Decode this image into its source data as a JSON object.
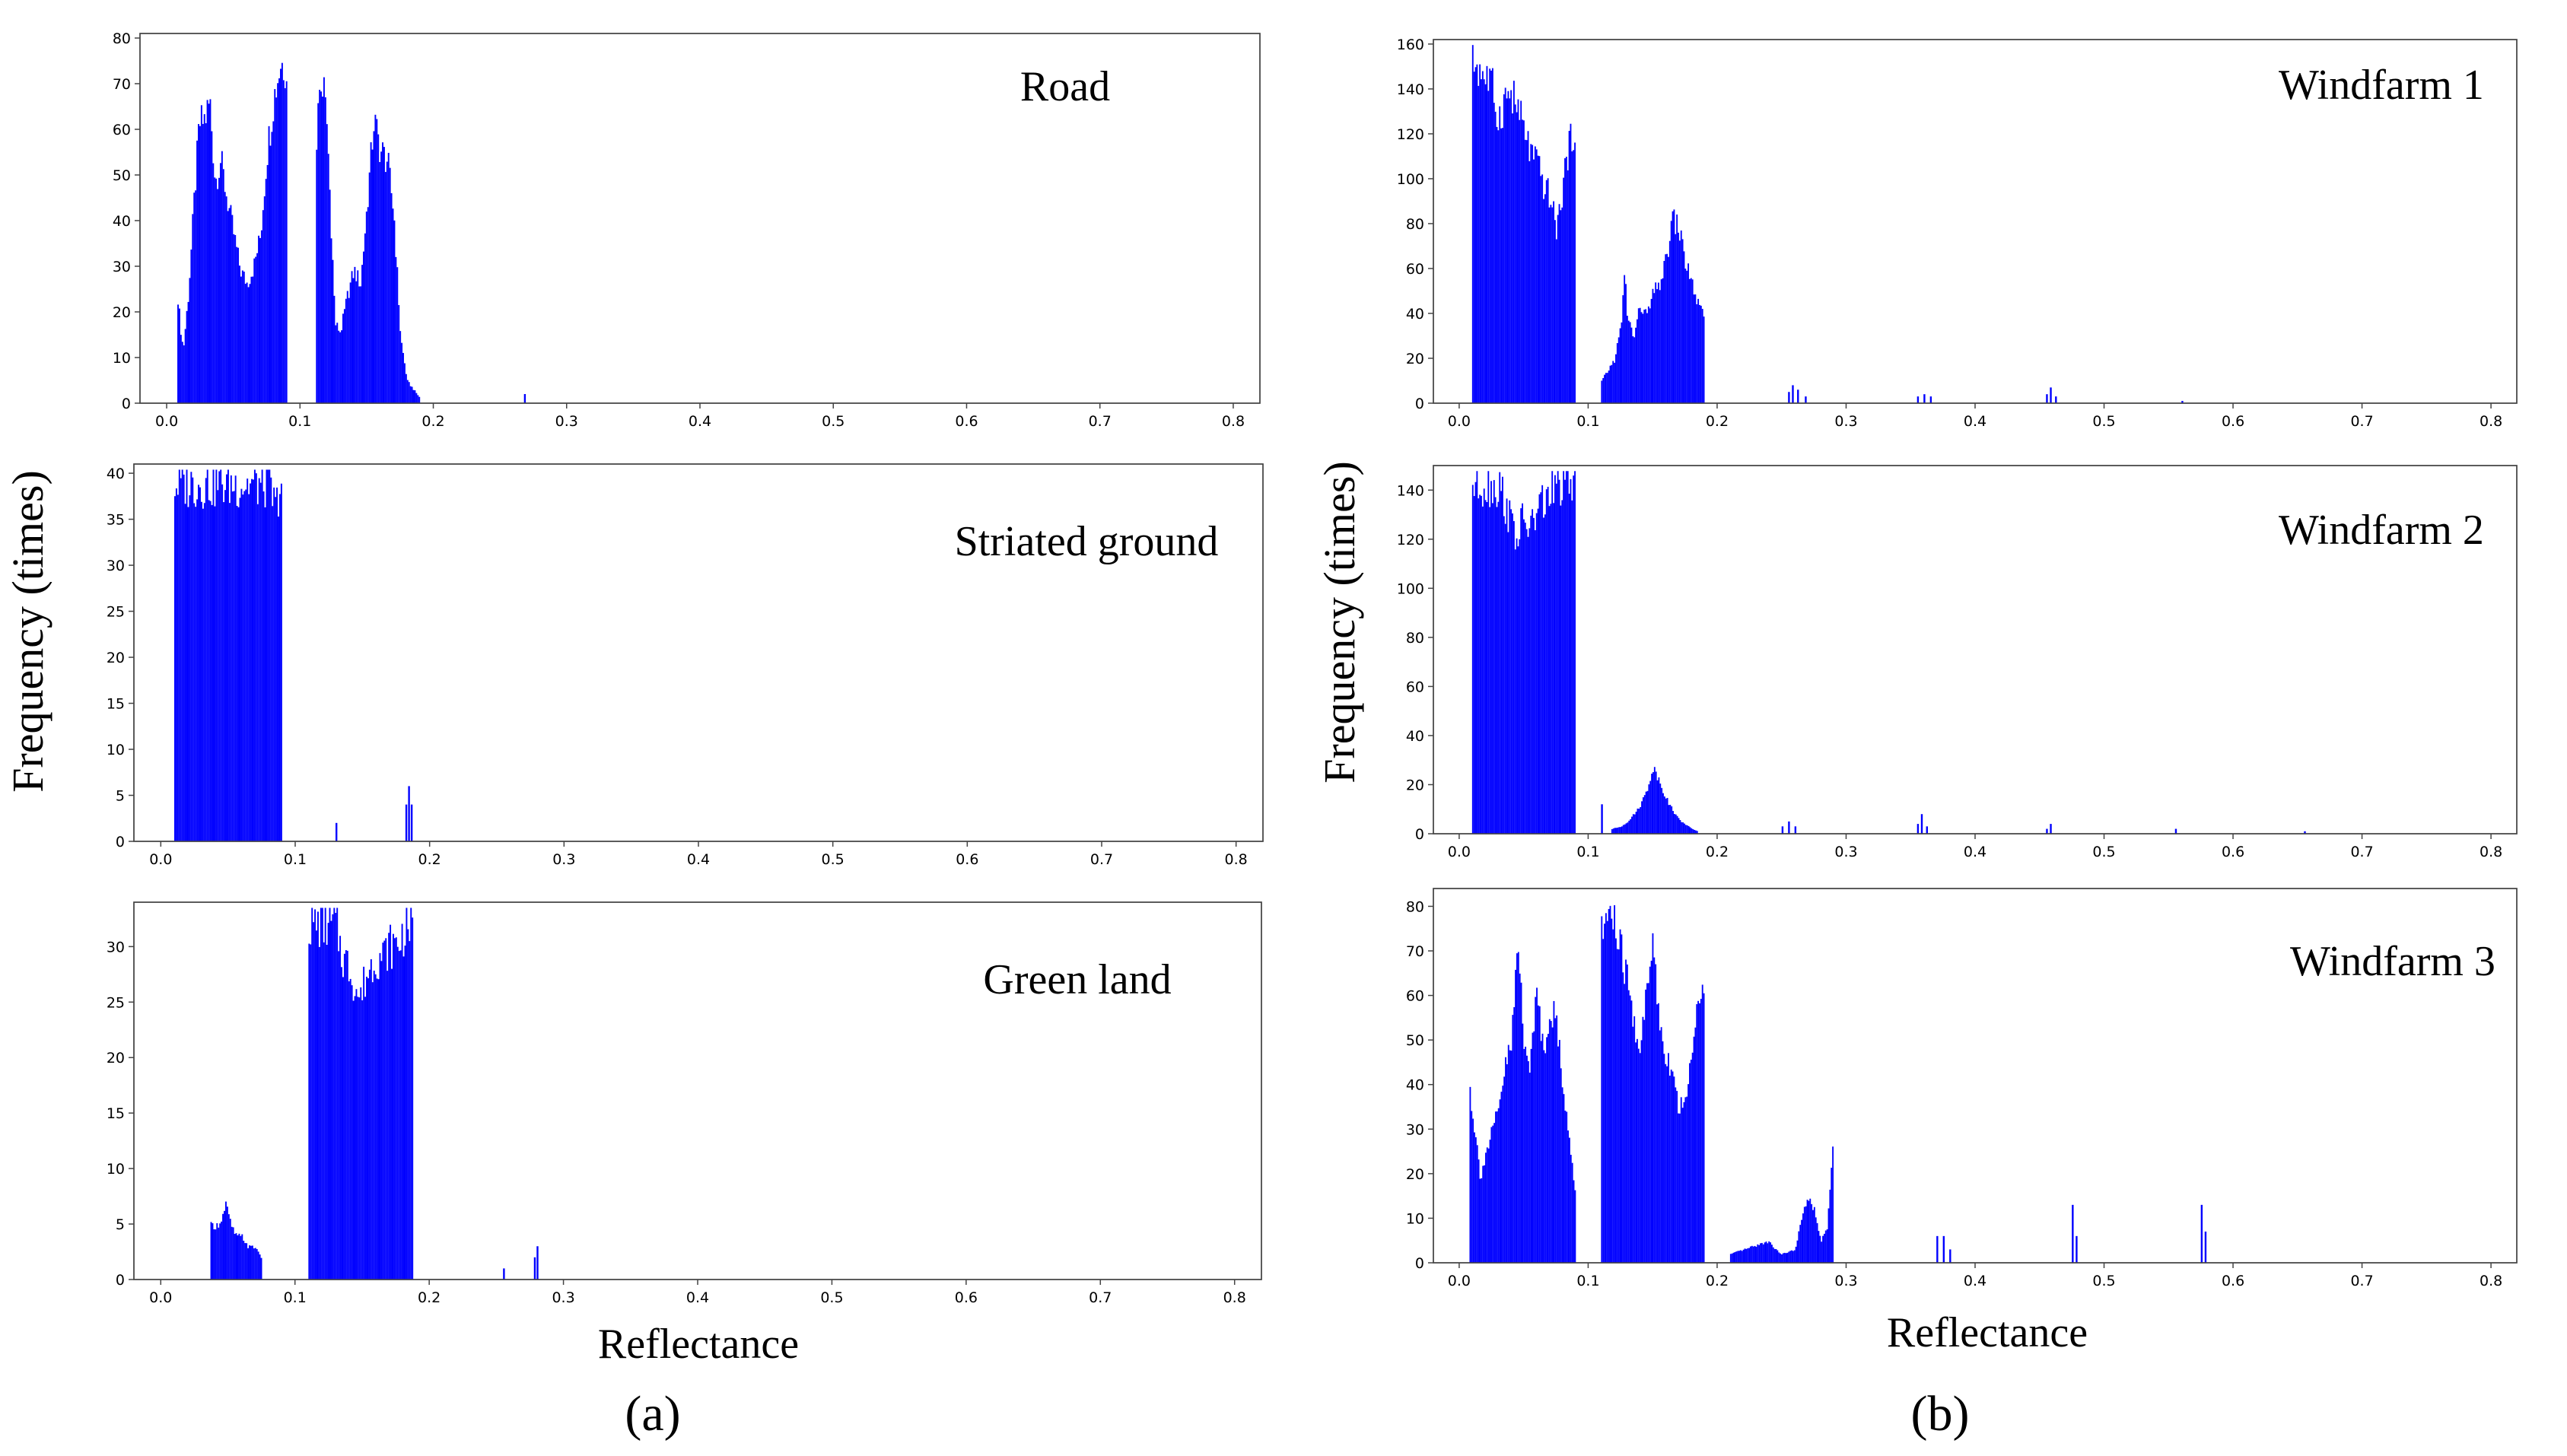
{
  "figure": {
    "panel_a_label": "(a)",
    "panel_b_label": "(b)",
    "ylabel": "Frequency (times)",
    "xlabel": "Reflectance",
    "bar_color": "#0000ff"
  },
  "chart_data": [
    {
      "id": "road",
      "type": "bar",
      "title": "Road",
      "xlabel": "",
      "ylabel": "Frequency (times)",
      "xlim": [
        -0.02,
        0.82
      ],
      "ylim": [
        0,
        81
      ],
      "xticks": [
        0.0,
        0.1,
        0.2,
        0.3,
        0.4,
        0.5,
        0.6,
        0.7,
        0.8
      ],
      "yticks": [
        0,
        10,
        20,
        30,
        40,
        50,
        60,
        70,
        80
      ],
      "bin_width": 0.0011,
      "profile": [
        [
          0.008,
          24
        ],
        [
          0.01,
          17
        ],
        [
          0.012,
          12
        ],
        [
          0.016,
          25
        ],
        [
          0.02,
          45
        ],
        [
          0.024,
          63
        ],
        [
          0.028,
          64
        ],
        [
          0.032,
          68
        ],
        [
          0.036,
          50
        ],
        [
          0.04,
          55
        ],
        [
          0.045,
          46
        ],
        [
          0.05,
          38
        ],
        [
          0.055,
          30
        ],
        [
          0.06,
          27
        ],
        [
          0.065,
          31
        ],
        [
          0.07,
          38
        ],
        [
          0.075,
          57
        ],
        [
          0.08,
          69
        ],
        [
          0.085,
          77
        ],
        [
          0.09,
          76
        ]
      ],
      "profile2": [
        [
          0.112,
          60
        ],
        [
          0.114,
          70
        ],
        [
          0.117,
          72
        ],
        [
          0.12,
          62
        ],
        [
          0.123,
          40
        ],
        [
          0.126,
          18
        ],
        [
          0.13,
          16
        ],
        [
          0.135,
          24
        ],
        [
          0.14,
          30
        ],
        [
          0.145,
          27
        ],
        [
          0.15,
          45
        ],
        [
          0.155,
          64
        ],
        [
          0.16,
          57
        ],
        [
          0.165,
          55
        ],
        [
          0.17,
          43
        ],
        [
          0.175,
          15
        ],
        [
          0.18,
          5
        ],
        [
          0.185,
          3
        ],
        [
          0.19,
          1
        ]
      ],
      "spikes": [
        [
          0.268,
          2
        ]
      ]
    },
    {
      "id": "striated-ground",
      "type": "bar",
      "title": "Striated ground",
      "xlabel": "",
      "ylabel": "Frequency (times)",
      "xlim": [
        -0.02,
        0.82
      ],
      "ylim": [
        0,
        41
      ],
      "xticks": [
        0.0,
        0.1,
        0.2,
        0.3,
        0.4,
        0.5,
        0.6,
        0.7,
        0.8
      ],
      "yticks": [
        0,
        5,
        10,
        15,
        20,
        25,
        30,
        35,
        40
      ],
      "bin_width": 0.0011,
      "profile": [
        [
          0.01,
          40
        ],
        [
          0.02,
          40
        ],
        [
          0.03,
          40
        ],
        [
          0.04,
          40
        ],
        [
          0.05,
          40
        ],
        [
          0.06,
          40
        ],
        [
          0.07,
          40
        ],
        [
          0.08,
          40
        ],
        [
          0.085,
          37
        ],
        [
          0.088,
          40
        ],
        [
          0.09,
          40
        ]
      ],
      "spikes": [
        [
          0.13,
          2
        ],
        [
          0.182,
          4
        ],
        [
          0.184,
          6
        ],
        [
          0.186,
          4
        ]
      ]
    },
    {
      "id": "green-land",
      "type": "bar",
      "title": "Green land",
      "xlabel": "Reflectance",
      "ylabel": "Frequency (times)",
      "xlim": [
        -0.02,
        0.82
      ],
      "ylim": [
        0,
        34
      ],
      "xticks": [
        0.0,
        0.1,
        0.2,
        0.3,
        0.4,
        0.5,
        0.6,
        0.7,
        0.8
      ],
      "yticks": [
        0,
        5,
        10,
        15,
        20,
        25,
        30
      ],
      "bin_width": 0.0011,
      "profile": [
        [
          0.037,
          5
        ],
        [
          0.042,
          5
        ],
        [
          0.046,
          6
        ],
        [
          0.048,
          7
        ],
        [
          0.052,
          5
        ],
        [
          0.056,
          4
        ],
        [
          0.06,
          4
        ],
        [
          0.065,
          3
        ],
        [
          0.07,
          3
        ],
        [
          0.075,
          2
        ]
      ],
      "profile2": [
        [
          0.11,
          33
        ],
        [
          0.12,
          33
        ],
        [
          0.13,
          33
        ],
        [
          0.135,
          30
        ],
        [
          0.14,
          29
        ],
        [
          0.145,
          27
        ],
        [
          0.148,
          26
        ],
        [
          0.152,
          28
        ],
        [
          0.156,
          29
        ],
        [
          0.16,
          30
        ],
        [
          0.165,
          30
        ],
        [
          0.17,
          31
        ],
        [
          0.175,
          31
        ],
        [
          0.18,
          32
        ],
        [
          0.183,
          33
        ],
        [
          0.188,
          33
        ]
      ],
      "spikes": [
        [
          0.255,
          1
        ],
        [
          0.278,
          2
        ],
        [
          0.28,
          3
        ]
      ]
    },
    {
      "id": "windfarm-1",
      "type": "bar",
      "title": "Windfarm 1",
      "xlabel": "",
      "ylabel": "Frequency (times)",
      "xlim": [
        -0.02,
        0.82
      ],
      "ylim": [
        0,
        162
      ],
      "xticks": [
        0.0,
        0.1,
        0.2,
        0.3,
        0.4,
        0.5,
        0.6,
        0.7,
        0.8
      ],
      "yticks": [
        0,
        20,
        40,
        60,
        80,
        100,
        120,
        140,
        160
      ],
      "bin_width": 0.0011,
      "profile": [
        [
          0.01,
          158
        ],
        [
          0.015,
          154
        ],
        [
          0.02,
          150
        ],
        [
          0.025,
          145
        ],
        [
          0.03,
          130
        ],
        [
          0.035,
          140
        ],
        [
          0.04,
          142
        ],
        [
          0.045,
          135
        ],
        [
          0.05,
          125
        ],
        [
          0.055,
          115
        ],
        [
          0.06,
          110
        ],
        [
          0.065,
          100
        ],
        [
          0.07,
          95
        ],
        [
          0.075,
          80
        ],
        [
          0.078,
          90
        ],
        [
          0.082,
          110
        ],
        [
          0.086,
          120
        ],
        [
          0.09,
          130
        ]
      ],
      "profile2": [
        [
          0.11,
          10
        ],
        [
          0.115,
          15
        ],
        [
          0.12,
          20
        ],
        [
          0.125,
          35
        ],
        [
          0.128,
          60
        ],
        [
          0.13,
          40
        ],
        [
          0.135,
          30
        ],
        [
          0.14,
          45
        ],
        [
          0.145,
          40
        ],
        [
          0.15,
          50
        ],
        [
          0.155,
          55
        ],
        [
          0.16,
          65
        ],
        [
          0.165,
          85
        ],
        [
          0.17,
          80
        ],
        [
          0.175,
          65
        ],
        [
          0.18,
          55
        ],
        [
          0.185,
          45
        ],
        [
          0.19,
          38
        ]
      ],
      "spikes": [
        [
          0.255,
          5
        ],
        [
          0.258,
          8
        ],
        [
          0.262,
          6
        ],
        [
          0.268,
          3
        ],
        [
          0.355,
          3
        ],
        [
          0.36,
          4
        ],
        [
          0.365,
          3
        ],
        [
          0.455,
          4
        ],
        [
          0.458,
          7
        ],
        [
          0.462,
          3
        ],
        [
          0.56,
          1
        ]
      ]
    },
    {
      "id": "windfarm-2",
      "type": "bar",
      "title": "Windfarm 2",
      "xlabel": "",
      "ylabel": "Frequency (times)",
      "xlim": [
        -0.02,
        0.82
      ],
      "ylim": [
        0,
        150
      ],
      "xticks": [
        0.0,
        0.1,
        0.2,
        0.3,
        0.4,
        0.5,
        0.6,
        0.7,
        0.8
      ],
      "yticks": [
        0,
        20,
        40,
        60,
        80,
        100,
        120,
        140
      ],
      "bin_width": 0.0011,
      "profile": [
        [
          0.01,
          147
        ],
        [
          0.02,
          147
        ],
        [
          0.03,
          146
        ],
        [
          0.035,
          140
        ],
        [
          0.04,
          130
        ],
        [
          0.045,
          125
        ],
        [
          0.05,
          132
        ],
        [
          0.055,
          128
        ],
        [
          0.06,
          135
        ],
        [
          0.065,
          140
        ],
        [
          0.07,
          142
        ],
        [
          0.075,
          146
        ],
        [
          0.08,
          147
        ],
        [
          0.085,
          147
        ],
        [
          0.09,
          147
        ]
      ],
      "profile2": [
        [
          0.118,
          2
        ],
        [
          0.125,
          3
        ],
        [
          0.13,
          5
        ],
        [
          0.135,
          8
        ],
        [
          0.14,
          12
        ],
        [
          0.145,
          18
        ],
        [
          0.15,
          28
        ],
        [
          0.155,
          22
        ],
        [
          0.16,
          15
        ],
        [
          0.165,
          10
        ],
        [
          0.17,
          6
        ],
        [
          0.175,
          4
        ],
        [
          0.18,
          2
        ],
        [
          0.185,
          1
        ]
      ],
      "spikes": [
        [
          0.11,
          12
        ],
        [
          0.25,
          3
        ],
        [
          0.255,
          5
        ],
        [
          0.26,
          3
        ],
        [
          0.355,
          4
        ],
        [
          0.358,
          8
        ],
        [
          0.362,
          3
        ],
        [
          0.455,
          2
        ],
        [
          0.458,
          4
        ],
        [
          0.555,
          2
        ],
        [
          0.655,
          1
        ]
      ]
    },
    {
      "id": "windfarm-3",
      "type": "bar",
      "title": "Windfarm 3",
      "xlabel": "Reflectance",
      "ylabel": "Frequency (times)",
      "xlim": [
        -0.02,
        0.82
      ],
      "ylim": [
        0,
        84
      ],
      "xticks": [
        0.0,
        0.1,
        0.2,
        0.3,
        0.4,
        0.5,
        0.6,
        0.7,
        0.8
      ],
      "yticks": [
        0,
        10,
        20,
        30,
        40,
        50,
        60,
        70,
        80
      ],
      "bin_width": 0.0011,
      "profile": [
        [
          0.008,
          40
        ],
        [
          0.012,
          30
        ],
        [
          0.016,
          20
        ],
        [
          0.02,
          25
        ],
        [
          0.025,
          30
        ],
        [
          0.03,
          35
        ],
        [
          0.035,
          45
        ],
        [
          0.04,
          50
        ],
        [
          0.045,
          74
        ],
        [
          0.05,
          52
        ],
        [
          0.055,
          45
        ],
        [
          0.06,
          65
        ],
        [
          0.065,
          48
        ],
        [
          0.07,
          60
        ],
        [
          0.075,
          55
        ],
        [
          0.08,
          42
        ],
        [
          0.085,
          28
        ],
        [
          0.09,
          15
        ]
      ],
      "profile2": [
        [
          0.11,
          75
        ],
        [
          0.115,
          82
        ],
        [
          0.12,
          78
        ],
        [
          0.125,
          72
        ],
        [
          0.13,
          65
        ],
        [
          0.135,
          55
        ],
        [
          0.14,
          50
        ],
        [
          0.145,
          62
        ],
        [
          0.15,
          75
        ],
        [
          0.155,
          55
        ],
        [
          0.16,
          48
        ],
        [
          0.165,
          45
        ],
        [
          0.17,
          35
        ],
        [
          0.175,
          40
        ],
        [
          0.18,
          45
        ],
        [
          0.185,
          65
        ],
        [
          0.19,
          60
        ]
      ],
      "profile3": [
        [
          0.21,
          2
        ],
        [
          0.22,
          3
        ],
        [
          0.23,
          4
        ],
        [
          0.24,
          5
        ],
        [
          0.245,
          3
        ],
        [
          0.25,
          2
        ],
        [
          0.26,
          3
        ],
        [
          0.265,
          10
        ],
        [
          0.27,
          15
        ],
        [
          0.275,
          12
        ],
        [
          0.28,
          5
        ],
        [
          0.285,
          8
        ],
        [
          0.29,
          30
        ]
      ],
      "spikes": [
        [
          0.37,
          6
        ],
        [
          0.375,
          6
        ],
        [
          0.38,
          3
        ],
        [
          0.475,
          13
        ],
        [
          0.478,
          6
        ],
        [
          0.575,
          13
        ],
        [
          0.578,
          7
        ]
      ]
    }
  ]
}
